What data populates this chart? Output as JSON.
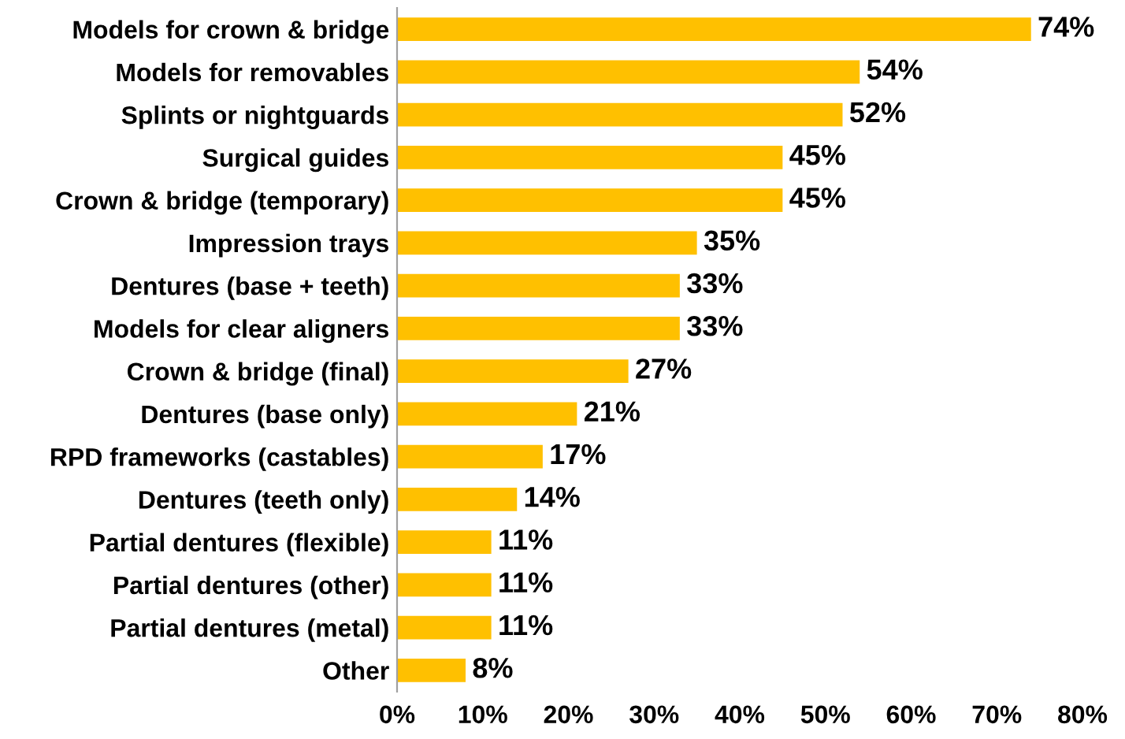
{
  "chart_data": {
    "type": "bar",
    "orientation": "horizontal",
    "categories": [
      "Models for crown & bridge",
      "Models for removables",
      "Splints or nightguards",
      "Surgical guides",
      "Crown & bridge (temporary)",
      "Impression trays",
      "Dentures (base + teeth)",
      "Models for clear aligners",
      "Crown & bridge (final)",
      "Dentures (base only)",
      "RPD frameworks (castables)",
      "Dentures (teeth only)",
      "Partial dentures (flexible)",
      "Partial dentures (other)",
      "Partial dentures (metal)",
      "Other"
    ],
    "values": [
      74,
      54,
      52,
      45,
      45,
      35,
      33,
      33,
      27,
      21,
      17,
      14,
      11,
      11,
      11,
      8
    ],
    "value_labels": [
      "74%",
      "54%",
      "52%",
      "45%",
      "45%",
      "35%",
      "33%",
      "33%",
      "27%",
      "21%",
      "17%",
      "14%",
      "11%",
      "11%",
      "11%",
      "8%"
    ],
    "color": "#ffc000",
    "xlim": [
      0,
      80
    ],
    "xticks": [
      {
        "value": 0,
        "label": "0%"
      },
      {
        "value": 10,
        "label": "10%"
      },
      {
        "value": 20,
        "label": "20%"
      },
      {
        "value": 30,
        "label": "30%"
      },
      {
        "value": 40,
        "label": "40%"
      },
      {
        "value": 50,
        "label": "50%"
      },
      {
        "value": 60,
        "label": "60%"
      },
      {
        "value": 70,
        "label": "70%"
      },
      {
        "value": 80,
        "label": "80%"
      }
    ],
    "grid": false,
    "legend": false
  }
}
